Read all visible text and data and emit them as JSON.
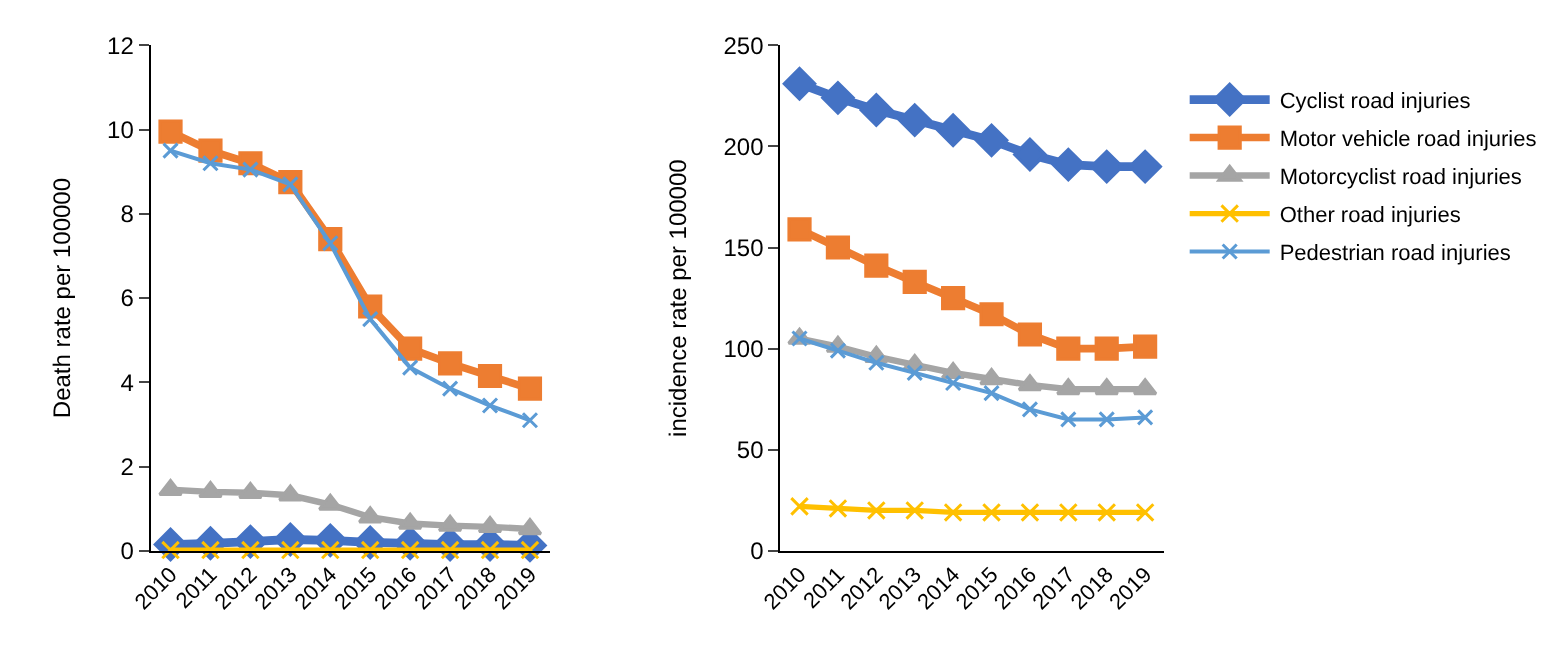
{
  "chart_data": [
    {
      "type": "line",
      "ylabel": "Death rate per 100000",
      "categories": [
        "2010",
        "2011",
        "2012",
        "2013",
        "2014",
        "2015",
        "2016",
        "2017",
        "2018",
        "2019"
      ],
      "ylim": [
        0,
        12
      ],
      "yticks": [
        0,
        2,
        4,
        6,
        8,
        10,
        12
      ],
      "grid": false,
      "legend": false,
      "series": [
        {
          "color": "#4472c4",
          "marker": "diamond",
          "values": [
            0.15,
            0.18,
            0.22,
            0.27,
            0.25,
            0.2,
            0.18,
            0.15,
            0.15,
            0.13
          ]
        },
        {
          "color": "#ed7d31",
          "marker": "square",
          "values": [
            9.95,
            9.5,
            9.2,
            8.75,
            7.4,
            5.8,
            4.8,
            4.45,
            4.15,
            3.85
          ]
        },
        {
          "color": "#a5a5a5",
          "marker": "triangle",
          "values": [
            1.45,
            1.4,
            1.38,
            1.32,
            1.1,
            0.8,
            0.65,
            0.6,
            0.57,
            0.52
          ]
        },
        {
          "color": "#ffc000",
          "marker": "cross",
          "values": [
            0.02,
            0.02,
            0.02,
            0.02,
            0.02,
            0.02,
            0.02,
            0.02,
            0.02,
            0.02
          ]
        },
        {
          "color": "#5b9bd5",
          "marker": "cross",
          "values": [
            9.5,
            9.2,
            9.05,
            8.7,
            7.3,
            5.5,
            4.35,
            3.85,
            3.45,
            3.1
          ]
        }
      ]
    },
    {
      "type": "line",
      "ylabel": "incidence rate per 100000",
      "categories": [
        "2010",
        "2011",
        "2012",
        "2013",
        "2014",
        "2015",
        "2016",
        "2017",
        "2018",
        "2019"
      ],
      "ylim": [
        0,
        250
      ],
      "yticks": [
        0,
        50,
        100,
        150,
        200,
        250
      ],
      "grid": false,
      "legend": "right",
      "series": [
        {
          "name": "Cyclist road injuries",
          "color": "#4472c4",
          "marker": "diamond",
          "values": [
            231,
            224,
            218,
            213,
            208,
            203,
            196,
            191,
            190,
            190
          ]
        },
        {
          "name": "Motor vehicle road injuries",
          "color": "#ed7d31",
          "marker": "square",
          "values": [
            159,
            150,
            141,
            133,
            125,
            117,
            107,
            100,
            100,
            101
          ]
        },
        {
          "name": "Motorcyclist road injuries",
          "color": "#a5a5a5",
          "marker": "triangle",
          "values": [
            105,
            101,
            96,
            92,
            88,
            85,
            82,
            80,
            80,
            80
          ]
        },
        {
          "name": "Other road injuries",
          "color": "#ffc000",
          "marker": "cross",
          "values": [
            22,
            21,
            20,
            20,
            19,
            19,
            19,
            19,
            19,
            19
          ]
        },
        {
          "name": "Pedestrian road injuries",
          "color": "#5b9bd5",
          "marker": "cross",
          "values": [
            105,
            99,
            93,
            88,
            83,
            78,
            70,
            65,
            65,
            66
          ]
        }
      ]
    }
  ]
}
